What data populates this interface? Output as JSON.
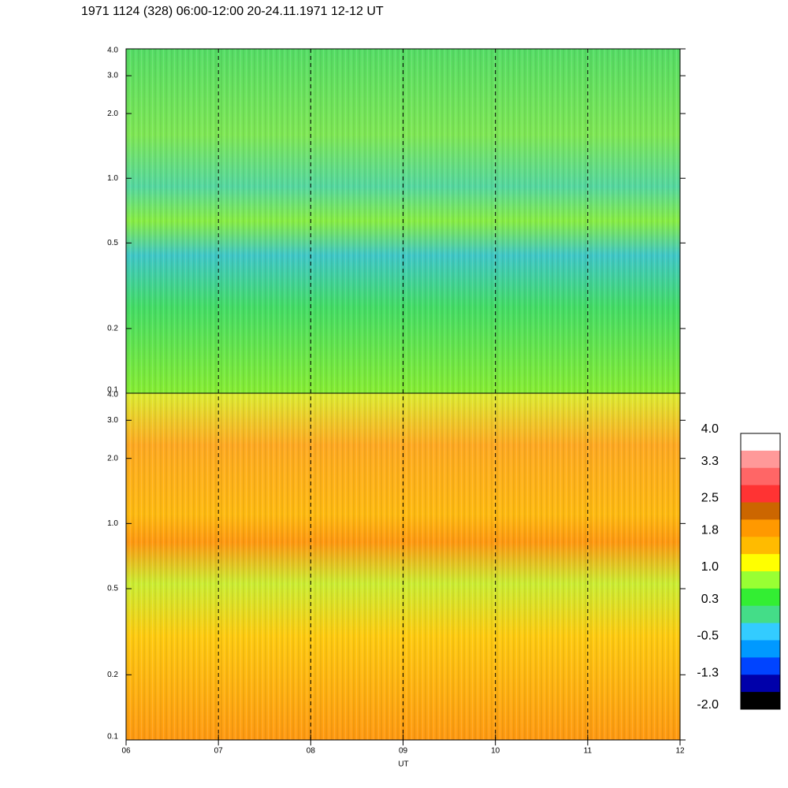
{
  "chart_data": {
    "type": "spectrogram",
    "title": "1971 1124 (328) 06:00-12:00 20-24.11.1971  12-12 UT",
    "xlabel": "UT",
    "xlim": [
      6,
      12
    ],
    "xticks": [
      {
        "value": 6,
        "label": "06"
      },
      {
        "value": 7,
        "label": "07"
      },
      {
        "value": 8,
        "label": "08"
      },
      {
        "value": 9,
        "label": "09"
      },
      {
        "value": 10,
        "label": "10"
      },
      {
        "value": 11,
        "label": "11"
      },
      {
        "value": 12,
        "label": "12"
      }
    ],
    "ylim": [
      0.1,
      4
    ],
    "log_y": true,
    "yticks": [
      0.1,
      0.2,
      0.5,
      {
        "value": 1,
        "label": "1.0"
      },
      {
        "value": 2,
        "label": "2.0"
      },
      {
        "value": 3,
        "label": "3.0"
      },
      {
        "value": 4,
        "label": "4.0"
      }
    ],
    "colorbar": {
      "lim": [
        -2,
        4
      ],
      "colors": [
        "#ffffff",
        "#ff9999",
        "#ff6666",
        "#ff3333",
        "#cc6600",
        "#ff9900",
        "#ffbb00",
        "#ffff00",
        "#99ff33",
        "#33ee33",
        "#44dd88",
        "#33ccff",
        "#0099ff",
        "#0044ff",
        "#0000aa",
        "#000000"
      ],
      "ticks": [
        {
          "value": 4,
          "label": "4.0"
        },
        3.3,
        2.5,
        1.8,
        {
          "value": 1,
          "label": "1.0"
        },
        0.3,
        -0.5,
        -1.3,
        {
          "value": -2,
          "label": "-2.0"
        }
      ]
    }
  }
}
